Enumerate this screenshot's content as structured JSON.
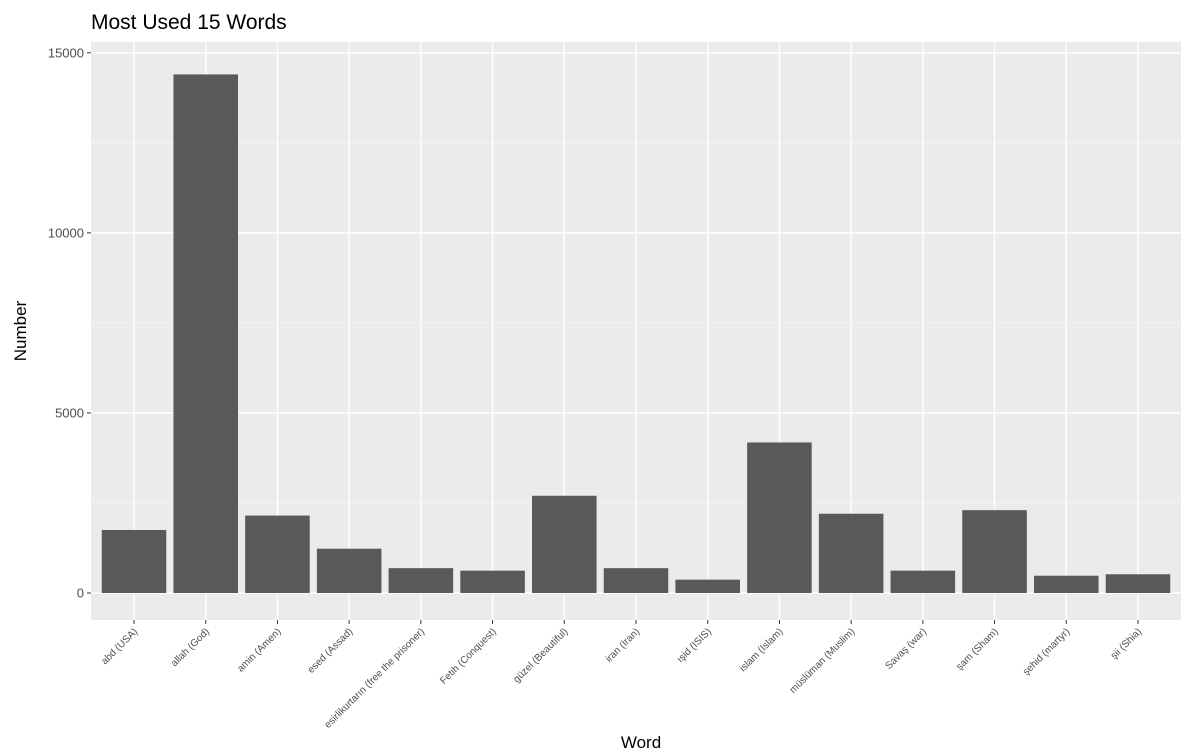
{
  "chart_data": {
    "type": "bar",
    "title": "Most Used 15 Words",
    "xlabel": "Word",
    "ylabel": "Number",
    "categories": [
      "abd (USA)",
      "allah (God)",
      "amin (Amen)",
      "esed (Assad)",
      "esirlikurtarın (free the prisoner)",
      "Fetih (Conquest)",
      "güzel (Beautiful)",
      "iran (Iran)",
      "ışid (ISIS)",
      "islam (Islam)",
      "müslüman (Muslim)",
      "Savaş (war)",
      "şam (Sham)",
      "şehid (martyr)",
      "şii (Shia)"
    ],
    "values": [
      1750,
      14400,
      2150,
      1230,
      690,
      620,
      2700,
      690,
      370,
      4180,
      2200,
      620,
      2300,
      480,
      520
    ],
    "ylim": [
      -750,
      15300
    ],
    "yticks": [
      0,
      5000,
      10000,
      15000
    ],
    "ytick_labels": [
      "0",
      "5000",
      "10000",
      "15000"
    ],
    "grid": true,
    "colors": {
      "panel_background": "#ebebeb",
      "grid_major": "#ffffff",
      "grid_minor": "#f5f5f5",
      "bar_fill": "#595959",
      "tick_text": "#4d4d4d",
      "tick_mark": "#333333"
    }
  }
}
